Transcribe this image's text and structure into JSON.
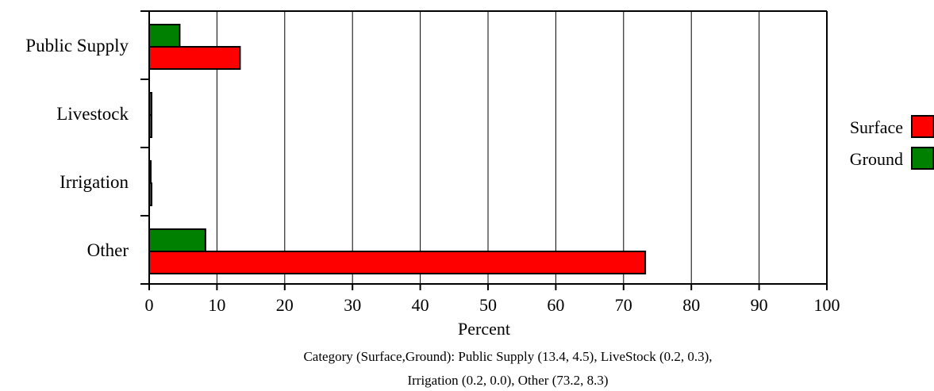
{
  "chart_data": {
    "type": "bar",
    "orientation": "horizontal",
    "categories": [
      "Public Supply",
      "Livestock",
      "Irrigation",
      "Other"
    ],
    "series": [
      {
        "name": "Surface",
        "color": "#ff0000",
        "values": [
          13.4,
          0.2,
          0.2,
          73.2
        ]
      },
      {
        "name": "Ground",
        "color": "#008000",
        "values": [
          4.5,
          0.3,
          0.0,
          8.3
        ]
      }
    ],
    "xlabel": "Percent",
    "ylabel": "",
    "xlim": [
      0,
      100
    ],
    "xticks": [
      "0",
      "10",
      "20",
      "30",
      "40",
      "50",
      "60",
      "70",
      "80",
      "90",
      "100"
    ],
    "grid": "vertical",
    "legend_position": "right",
    "caption_lines": [
      "Category (Surface,Ground): Public Supply (13.4, 4.5), LiveStock (0.2, 0.3),",
      "Irrigation (0.2, 0.0), Other (73.2, 8.3)"
    ]
  }
}
